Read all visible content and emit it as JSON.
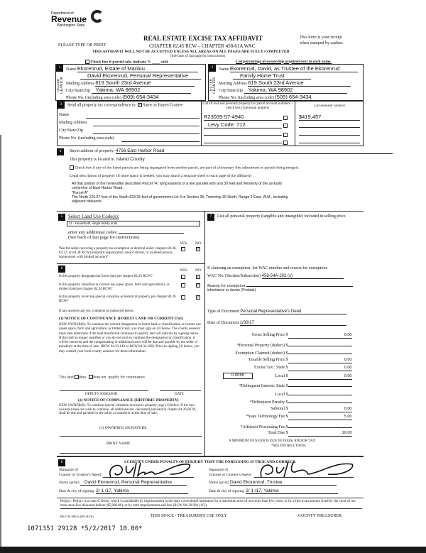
{
  "header": {
    "logo": {
      "line1": "Department of",
      "line2": "Revenue",
      "line3": "Washington State"
    },
    "please": "PLEASE TYPE OR PRINT",
    "title": "REAL ESTATE EXCISE TAX AFFIDAVIT",
    "chapter": "CHAPTER 82.45 RCW – CHAPTER 458-61A WAC",
    "warning": "THIS AFFIDAVIT WILL NOT BE ACCEPTED UNLESS ALL AREAS ON ALL PAGES ARE FULLY COMPLETED",
    "see_back": "(See back of last page for instructions)",
    "receipt1": "This form is your receipt",
    "receipt2": "when stamped by cashier.",
    "partial": "Check box if partial sale, indicate %",
    "sold": "sold.",
    "ownership": "List percentage of ownership acquired next to each name."
  },
  "seller": {
    "num": "1",
    "side": "SELLER GRANTOR",
    "name_label": "Name",
    "name1": "Ekorenrud, Estate of Marilou",
    "name2": "David Ekorenrud, Personal Representative",
    "addr_label": "Mailing Address",
    "addr": "619 South 23rd Avenue",
    "city_label": "City/State/Zip",
    "city": "Yakima, WA 98902",
    "phone_label": "Phone No. (including area code)",
    "phone": "(509) 654-3434"
  },
  "buyer": {
    "num": "2",
    "side": "BUYER GRANTEE",
    "name_label": "Name",
    "name1": "Ekorenrud, David, as Trustee of the Ekorenrud",
    "name2": "Family Home Trust",
    "addr_label": "Mailing Address",
    "addr": "619 South 23rd Avenue",
    "city_label": "City/State/Zip",
    "city": "Yakima, WA 98902",
    "phone_label": "Phone No. (including area code)",
    "phone": "(509) 654-3434"
  },
  "sec3": {
    "num": "3",
    "send": "Send all property tax correspondence to:",
    "same": "Same as Buyer/Grantee",
    "same_checked": true,
    "name": "Name",
    "addr": "Mailing Address",
    "city": "City/State/Zip",
    "phone": "Phone No. (including area code)",
    "parcel_header": "List all real and personal property tax parcel account numbers – check box if personal property",
    "value_header": "List assessed value(s)",
    "parcels": [
      "R23035-57-4940",
      "Levy Code: 712",
      "",
      ""
    ],
    "values": [
      "$419,457",
      "",
      "",
      ""
    ]
  },
  "sec4": {
    "num": "4",
    "street_label": "Street address of property:",
    "street": "4756 East Harbor Road",
    "located_label": "This property is located in",
    "located": "Island County",
    "segregated": "Check box if any of the listed parcels are being segregated from another parcel, are part of a boundary line adjustment or parcels being merged.",
    "legal_label": "Legal description of property (if more space is needed, you may attach a separate sheet to each page of the affidavit)",
    "legal": [
      "All that portion of the hereinafter described Parcel \"A\" lying easterly of a line parallel with and 30 feet and Westerly of the as-build",
      "centerline of East Harbor Road.",
      "\"Parcel A\"",
      "The North 126.67 feet of the South 633.35 feet of government Lot 4 in Section 35, Township 30 North, Range 2 East, W.M., including",
      "adjacent tidelands."
    ]
  },
  "sec5": {
    "num": "5",
    "title": "Select Land Use Code(s):",
    "code": "11 - Household, single family units",
    "additional": "enter any additional codes:",
    "see_back": "(See back of last page for instructions)",
    "yes": "YES",
    "no": "NO",
    "q": "Was the seller receiving a property tax exemption or deferral under chapters 84.36, 84.37, or 84.38 RCW (nonprofit organization, senior citizen, or disabled person, homeowner with limited income)?"
  },
  "sec6": {
    "num": "6",
    "yes": "YES",
    "no": "NO",
    "questions": [
      {
        "text": "Is this property designated as forest land per chapter 84.33 RCW?",
        "answer": "NO"
      },
      {
        "text": "Is this property classified as current use (open space, farm and agricultural, or timber) land per chapter 84.34 RCW?",
        "answer": "NO"
      },
      {
        "text": "Is this property receiving special valuation as historical property per chapter 84.26 RCW?",
        "answer": "NO"
      }
    ],
    "if_yes": "If any answers are yes, complete as instructed below.",
    "n1_title": "(1) NOTICE OF CONTINUANCE (FOREST LAND OR CURRENT USE)",
    "n1_text": "NEW OWNER(S): To continue the current designation as forest land or classification as current use (open space, farm and agriculture, or timber) land, you must sign on (3) below. The county assessor must then determine if the land transferred continues to qualify and will indicate by signing below. If the land no longer qualifies or you do not wish to continue the designation or classification, it will be removed and the compensating or additional taxes will be due and payable by the seller or transferor at the time of sale. (RCW 84.33.140 or RCW 84.34.108). Prior to signing (3) below, you may contact your local county assessor for more information.",
    "this_land": "This land",
    "does": "does",
    "does_not": "does not",
    "qualify": "qualify for continuance.",
    "deputy": "DEPUTY ASSESSOR",
    "date": "DATE",
    "n2_title": "(2) NOTICE OF COMPLIANCE (HISTORIC PROPERTY)",
    "n2_text": "NEW OWNER(S): To continue special valuation as historic property, sign (3) below. If the new owner(s) does not wish to continue, all additional tax calculated pursuant to chapter 84.26 RCW, shall be due and payable by the seller or transferor at the time of sale.",
    "n3": "(3) OWNER(S) SIGNATURE",
    "print": "PRINT NAME"
  },
  "sec7": {
    "num": "7",
    "text": "List all personal property (tangible and intangible) included in selling price."
  },
  "exempt": {
    "label": "If claiming an exemption, list WAC number and reason for exemption:",
    "wac_label": "WAC No. (Section/Subsection)",
    "wac": "458-54A-202 (c)",
    "reason_label": "Reason for exemption",
    "reason": "inheritance or devise (Probate)",
    "type_label": "Type of Document",
    "type": "Personal Representative's Deed",
    "date_label": "Date of Document",
    "date": "1/30/17"
  },
  "fees": {
    "rate": "0.0050",
    "rows": [
      {
        "label": "Gross Selling Price",
        "value": "0.00"
      },
      {
        "label": "*Personal Property (deduct)",
        "value": ""
      },
      {
        "label": "Exemption Claimed (deduct)",
        "value": ""
      },
      {
        "label": "Taxable Selling Price",
        "value": "0.00"
      },
      {
        "label": "Excise Tax : State",
        "value": "0.00"
      },
      {
        "label": "Local",
        "value": "0.00"
      },
      {
        "label": "*Delinquent Interest: State",
        "value": ""
      },
      {
        "label": "Local",
        "value": ""
      },
      {
        "label": "*Delinquent Penalty",
        "value": ""
      },
      {
        "label": "Subtotal",
        "value": "0.00"
      },
      {
        "label": "*State Technology Fee",
        "value": "5.00"
      },
      {
        "label": "*Affidavit Processing Fee",
        "value": ""
      },
      {
        "label": "Total Due",
        "value": "10.00"
      }
    ],
    "currency": "$",
    "minimum": "A MINIMUM OF $10.00 IS DUE IN FEE(S) AND/OR TAX",
    "see": "*SEE INSTRUCTIONS"
  },
  "sec8": {
    "num": "8",
    "certify": "I CERTIFY UNDER PENALTY OF PERJURY THAT THE FOREGOING IS TRUE AND CORRECT.",
    "grantor_sig_label1": "Signature of",
    "grantor_sig_label2": "Grantor or Grantor's Agent",
    "grantee_sig_label2": "Grantee or Grantor's Agent",
    "name_label": "Name (print)",
    "grantor_name": "David Ekorenrud, Personal Representative",
    "grantee_name": "David Ekorenrud, Trustee",
    "date_label": "Date & city of signing:",
    "grantor_date": "2/ 1 /17, Yakima",
    "grantee_date": "2/ 1 /17, Yakima"
  },
  "footer": {
    "perjury": "Perjury: Perjury is a class C felony which is punishable by imprisonment in the state correctional institution for a maximum term of not more than five years, or by a fine in an amount fixed by the court of not more than five thousand dollars ($5,000.00), or by both imprisonment and fine (RCW 9A.20.020 (1C)).",
    "rev": "REV 84 0001a (09/14/16)",
    "space": "THIS SPACE - TREASURER'S USE ONLY",
    "treasurer": "COUNTY TREASURER",
    "stamp": "1071351 29128 *5/2/2017 10.00*"
  }
}
